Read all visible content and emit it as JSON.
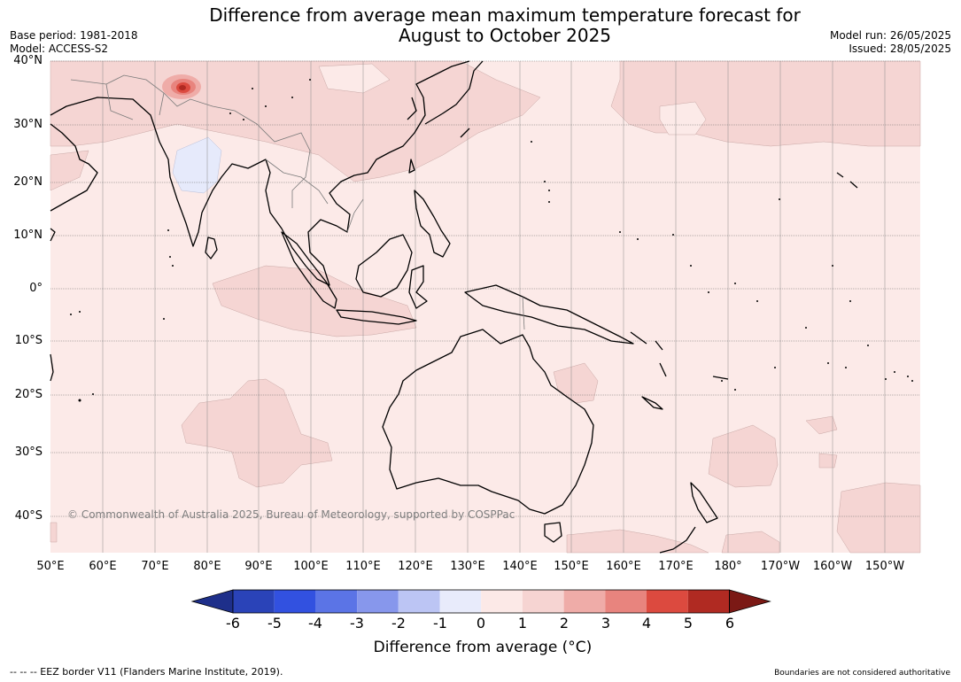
{
  "title_line1": "Difference from average mean maximum temperature forecast for",
  "title_line2": "August to October 2025",
  "base_period": "Base period: 1981-2018",
  "model": "Model: ACCESS-S2",
  "model_run": "Model run: 26/05/2025",
  "issued": "Issued: 28/05/2025",
  "copyright": "© Commonwealth of Australia 2025, Bureau of Meteorology, supported by COSPPac",
  "lat_labels": [
    "40°N",
    "30°N",
    "20°N",
    "10°N",
    "0°",
    "10°S",
    "20°S",
    "30°S",
    "40°S"
  ],
  "lon_labels": [
    "50°E",
    "60°E",
    "70°E",
    "80°E",
    "90°E",
    "100°E",
    "110°E",
    "120°E",
    "130°E",
    "140°E",
    "150°E",
    "160°E",
    "170°E",
    "180°",
    "170°W",
    "160°W",
    "150°W"
  ],
  "colorbar": {
    "ticks": [
      "-6",
      "-5",
      "-4",
      "-3",
      "-2",
      "-1",
      "0",
      "1",
      "2",
      "3",
      "4",
      "5",
      "6"
    ],
    "colors": [
      "#1e2f8a",
      "#2a43b8",
      "#3251e0",
      "#5b74e6",
      "#8797ec",
      "#bcc5f4",
      "#e8ebfb",
      "#fce9e7",
      "#f6d4d2",
      "#efaca8",
      "#e8847e",
      "#dc4a3f",
      "#b02a22",
      "#7b1915"
    ],
    "title": "Difference from average (°C)"
  },
  "footer_left": "--  --  -- EEZ border V11 (Flanders Marine Institute, 2019).",
  "footer_right": "Boundaries are not considered authoritative"
}
